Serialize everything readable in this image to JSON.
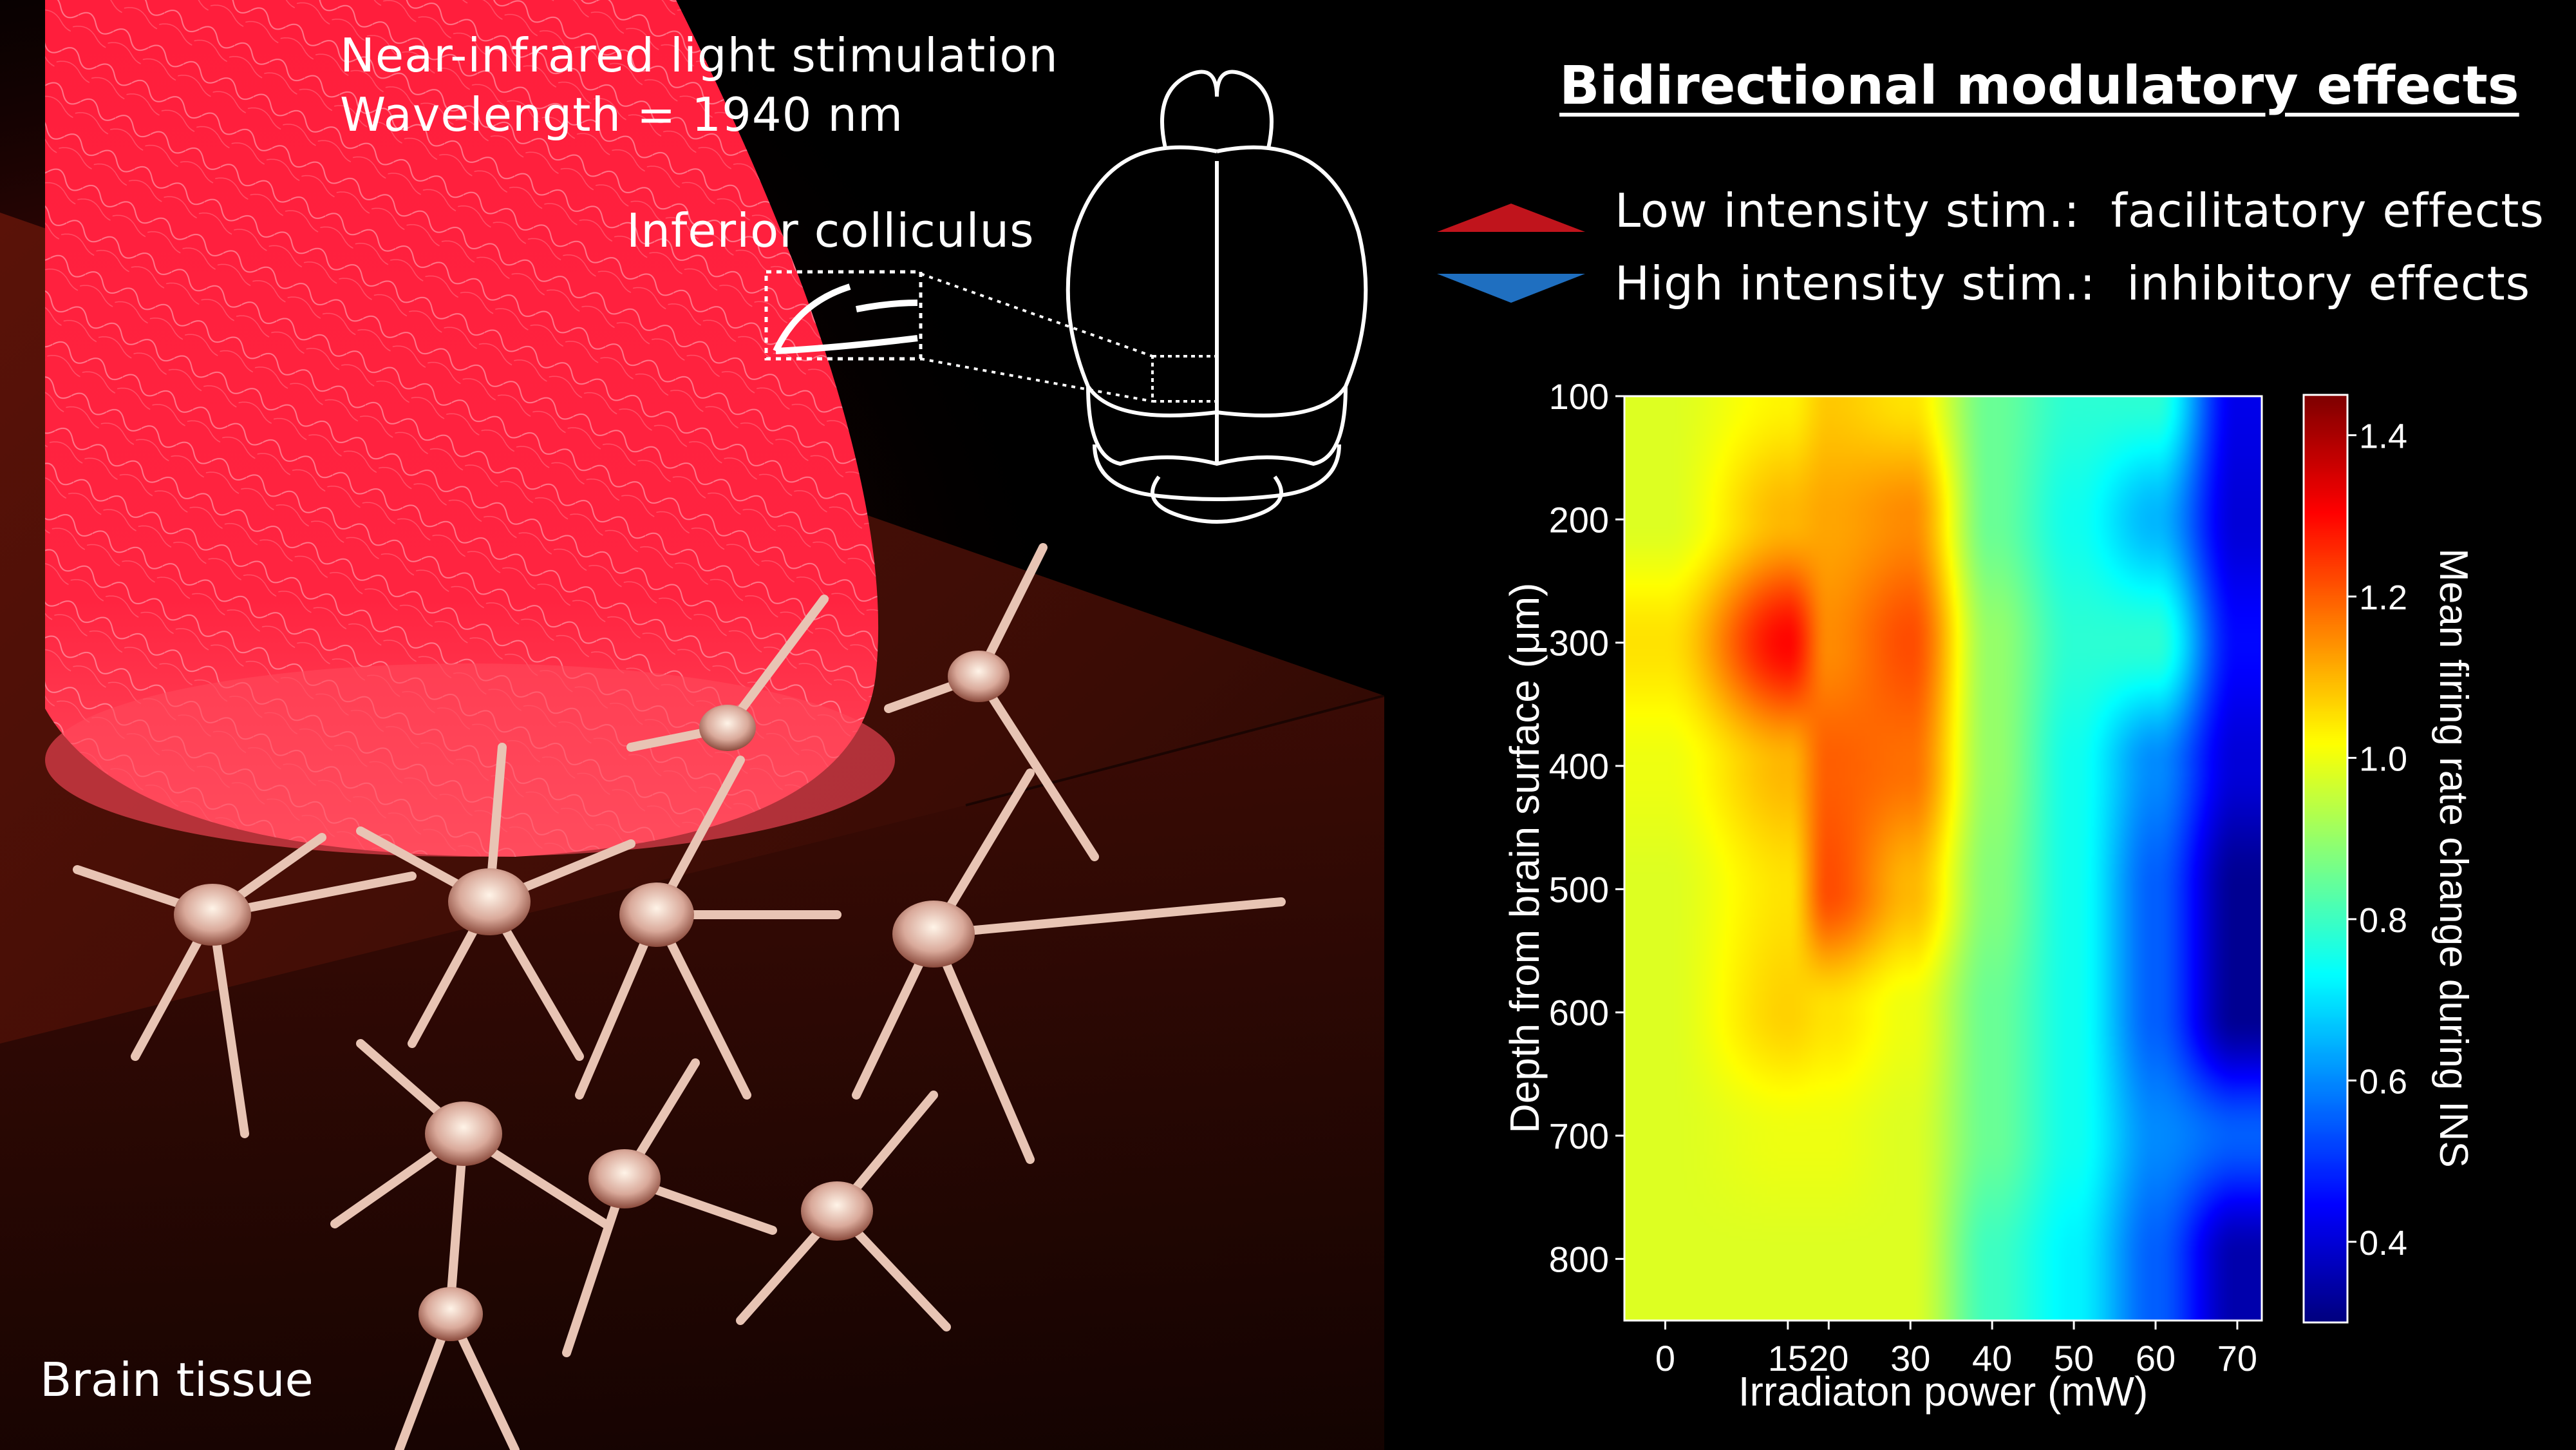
{
  "intro": {
    "line1": "Near-infrared light stimulation",
    "line2": "Wavelength = 1940 nm"
  },
  "region_label": "Inferior colliculus",
  "tissue_label": "Brain tissue",
  "effects": {
    "title": "Bidirectional modulatory effects",
    "low": {
      "label": "Low intensity stim.:",
      "effect": "facilitatory effects",
      "color": "#c0141c"
    },
    "high": {
      "label": "High intensity stim.:",
      "effect": "inhibitory effects",
      "color": "#1f6fc0"
    }
  },
  "chart_data": {
    "type": "heatmap",
    "xlabel": "Irradiaton power (mW)",
    "ylabel": "Depth from brain surface (μm)",
    "colorbar_label": "Mean firing rate change during INS",
    "x_ticks": [
      0,
      15,
      20,
      30,
      40,
      50,
      60,
      70
    ],
    "y_ticks": [
      100,
      200,
      300,
      400,
      500,
      600,
      700,
      800
    ],
    "colorbar_ticks": [
      1.4,
      1.2,
      1.0,
      0.8,
      0.6,
      0.4
    ],
    "xlim": [
      -5,
      73
    ],
    "ylim": [
      850,
      100
    ],
    "clim": [
      0.3,
      1.45
    ],
    "colormap": "jet",
    "grid": false,
    "x": [
      0,
      15,
      20,
      30,
      40,
      50,
      60,
      70
    ],
    "y": [
      100,
      200,
      300,
      400,
      500,
      600,
      700,
      800
    ],
    "values": [
      [
        0.98,
        1.03,
        1.08,
        1.05,
        0.85,
        0.78,
        0.78,
        0.42
      ],
      [
        0.98,
        1.1,
        1.12,
        1.15,
        0.85,
        0.75,
        0.65,
        0.4
      ],
      [
        1.05,
        1.3,
        1.15,
        1.22,
        0.9,
        0.78,
        0.78,
        0.45
      ],
      [
        1.0,
        1.1,
        1.2,
        1.18,
        0.9,
        0.75,
        0.6,
        0.4
      ],
      [
        0.98,
        1.05,
        1.22,
        1.1,
        0.88,
        0.75,
        0.55,
        0.32
      ],
      [
        0.98,
        1.07,
        1.05,
        1.0,
        0.85,
        0.75,
        0.55,
        0.32
      ],
      [
        0.98,
        1.0,
        1.0,
        0.98,
        0.85,
        0.75,
        0.6,
        0.55
      ],
      [
        0.98,
        0.98,
        0.98,
        0.98,
        0.8,
        0.72,
        0.55,
        0.35
      ]
    ]
  }
}
